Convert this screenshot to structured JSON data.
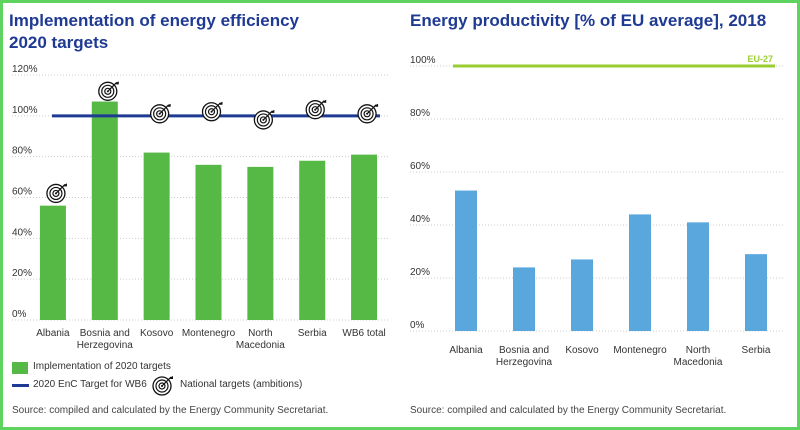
{
  "colors": {
    "title": "#1f3a93",
    "bar_green": "#56b946",
    "target_line": "#1f3a93",
    "bar_blue": "#5aa7dd",
    "eu_line": "#9acd32",
    "grid": "#cccccc",
    "frame": "#5fd35f"
  },
  "left_panel": {
    "title": "Implementation of energy efficiency 2020 targets",
    "legend": {
      "bars": "Implementation of 2020 targets",
      "line": "2020 EnC Target for WB6",
      "icon": "National targets (ambitions)"
    },
    "source": "Source: compiled and calculated by the Energy Community Secretariat."
  },
  "right_panel": {
    "title": "Energy productivity [% of EU average], 2018",
    "source": "Source: compiled and calculated by the Energy Community Secretariat."
  },
  "chart_data": [
    {
      "type": "bar",
      "title": "Implementation of energy efficiency 2020 targets",
      "categories": [
        "Albania",
        "Bosnia and Herzegovina",
        "Kosovo",
        "Montenegro",
        "North Macedonia",
        "Serbia",
        "WB6 total"
      ],
      "category_lines": [
        [
          "Albania"
        ],
        [
          "Bosnia and",
          "Herzegovina"
        ],
        [
          "Kosovo"
        ],
        [
          "Montenegro"
        ],
        [
          "North",
          "Macedonia"
        ],
        [
          "Serbia"
        ],
        [
          "WB6 total"
        ]
      ],
      "series": [
        {
          "name": "Implementation of 2020 targets",
          "values": [
            56,
            107,
            82,
            76,
            75,
            78,
            81
          ]
        },
        {
          "name": "National targets (ambitions)",
          "values": [
            62,
            112,
            101,
            102,
            98,
            103,
            101
          ]
        }
      ],
      "reference_line": {
        "name": "2020 EnC Target for WB6",
        "value": 100
      },
      "yticks": [
        0,
        20,
        40,
        60,
        80,
        100,
        120
      ],
      "ytick_labels": [
        "0%",
        "20%",
        "40%",
        "60%",
        "80%",
        "100%",
        "120%"
      ],
      "ylim": [
        0,
        120
      ],
      "grid": true,
      "legend": "bottom"
    },
    {
      "type": "bar",
      "title": "Energy productivity [% of EU average], 2018",
      "categories": [
        "Albania",
        "Bosnia and Herzegovina",
        "Kosovo",
        "Montenegro",
        "North Macedonia",
        "Serbia"
      ],
      "category_lines": [
        [
          "Albania"
        ],
        [
          "Bosnia and",
          "Herzegovina"
        ],
        [
          "Kosovo"
        ],
        [
          "Montenegro"
        ],
        [
          "North",
          "Macedonia"
        ],
        [
          "Serbia"
        ]
      ],
      "values": [
        53,
        24,
        27,
        44,
        41,
        29
      ],
      "reference_line": {
        "name": "EU-27",
        "value": 100
      },
      "yticks": [
        0,
        20,
        40,
        60,
        80,
        100
      ],
      "ytick_labels": [
        "0%",
        "20%",
        "40%",
        "60%",
        "80%",
        "100%"
      ],
      "ylim": [
        0,
        100
      ],
      "grid": true
    }
  ]
}
